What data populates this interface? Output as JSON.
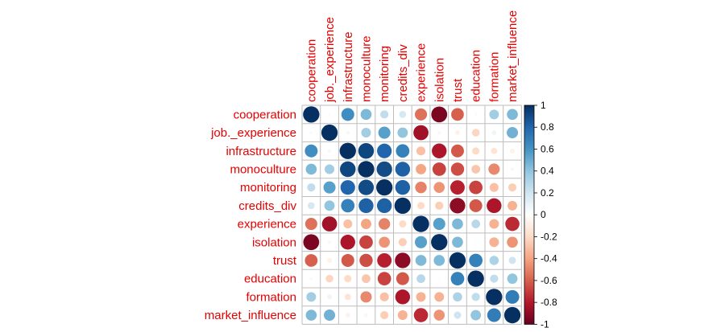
{
  "chart_data": {
    "type": "heatmap",
    "style": "circle-correlation-matrix",
    "variables": [
      "cooperation",
      "job._experience",
      "infrastructure",
      "monoculture",
      "monitoring",
      "credits_div",
      "experience",
      "isolation",
      "trust",
      "education",
      "formation",
      "market_influence"
    ],
    "label_color": "#e60000",
    "grid": true,
    "matrix": [
      [
        1.0,
        0.03,
        0.62,
        0.45,
        0.25,
        0.18,
        -0.55,
        -0.95,
        -0.6,
        0.03,
        0.35,
        0.45
      ],
      [
        0.03,
        1.0,
        0.05,
        0.35,
        0.55,
        0.4,
        -0.85,
        0.05,
        -0.08,
        -0.22,
        0.08,
        0.48
      ],
      [
        0.62,
        0.05,
        1.0,
        0.92,
        0.8,
        0.68,
        -0.3,
        -0.82,
        -0.62,
        -0.2,
        -0.15,
        -0.08
      ],
      [
        0.45,
        0.35,
        0.92,
        1.0,
        0.9,
        0.82,
        -0.4,
        -0.68,
        -0.65,
        -0.28,
        -0.48,
        -0.05
      ],
      [
        0.25,
        0.55,
        0.8,
        0.9,
        1.0,
        0.82,
        -0.5,
        -0.45,
        -0.78,
        -0.68,
        -0.3,
        -0.25
      ],
      [
        0.18,
        0.4,
        0.68,
        0.82,
        0.82,
        1.0,
        -0.2,
        -0.25,
        -0.9,
        -0.62,
        -0.82,
        -0.35
      ],
      [
        -0.55,
        -0.85,
        -0.3,
        -0.4,
        -0.5,
        -0.2,
        1.0,
        0.55,
        0.45,
        0.28,
        -0.35,
        -0.75
      ],
      [
        -0.95,
        0.05,
        -0.82,
        -0.68,
        -0.45,
        -0.25,
        0.55,
        1.0,
        0.45,
        0.02,
        -0.35,
        -0.45
      ],
      [
        -0.6,
        -0.08,
        -0.62,
        -0.65,
        -0.78,
        -0.9,
        0.45,
        0.45,
        1.0,
        0.68,
        0.32,
        0.2
      ],
      [
        0.03,
        -0.22,
        -0.2,
        -0.28,
        -0.68,
        -0.62,
        0.28,
        0.02,
        0.68,
        1.0,
        0.25,
        0.4
      ],
      [
        0.35,
        0.08,
        -0.15,
        -0.48,
        -0.3,
        -0.82,
        -0.35,
        -0.35,
        0.32,
        0.25,
        1.0,
        0.7
      ],
      [
        0.45,
        0.48,
        -0.08,
        -0.05,
        -0.25,
        -0.35,
        -0.75,
        -0.45,
        0.2,
        0.4,
        0.7,
        1.0
      ]
    ],
    "colorbar": {
      "range": [
        -1,
        1
      ],
      "ticks": [
        "1",
        "0.8",
        "0.6",
        "0.4",
        "0.2",
        "0",
        "-0.2",
        "-0.4",
        "-0.6",
        "-0.8",
        "-1"
      ],
      "stops": [
        "#67001f",
        "#b2182b",
        "#d6604d",
        "#f4a582",
        "#fddbc7",
        "#ffffff",
        "#d1e5f0",
        "#92c5de",
        "#4393c3",
        "#2166ac",
        "#053061"
      ]
    }
  }
}
